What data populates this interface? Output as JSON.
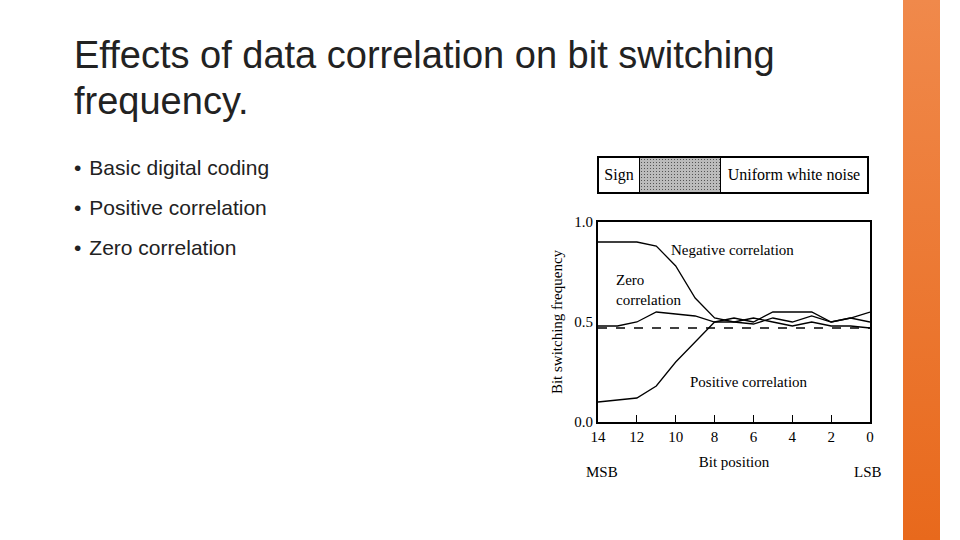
{
  "slide": {
    "title": "Effects of data correlation on bit switching frequency.",
    "bullets": [
      "Basic digital coding",
      "Positive correlation",
      "Zero correlation"
    ],
    "figure_header": {
      "sign": "Sign",
      "noise": "Uniform white noise"
    }
  },
  "chart_data": {
    "type": "line",
    "x_label": "Bit position",
    "y_label": "Bit switching frequency",
    "annotations": [
      "MSB",
      "LSB"
    ],
    "x": [
      14,
      13,
      12,
      11,
      10,
      9,
      8,
      7,
      6,
      5,
      4,
      3,
      2,
      1,
      0
    ],
    "series": [
      {
        "name": "Negative correlation",
        "color": "#000000",
        "line_style": "solid",
        "values": [
          0.9,
          0.9,
          0.9,
          0.88,
          0.78,
          0.62,
          0.52,
          0.5,
          0.52,
          0.5,
          0.48,
          0.5,
          0.48,
          0.48,
          0.47
        ]
      },
      {
        "name": "Zero correlation",
        "color": "#000000",
        "line_style": "solid",
        "values": [
          0.48,
          0.48,
          0.5,
          0.55,
          0.54,
          0.53,
          0.5,
          0.52,
          0.5,
          0.55,
          0.55,
          0.55,
          0.5,
          0.52,
          0.5
        ]
      },
      {
        "name": "Positive correlation",
        "color": "#000000",
        "line_style": "solid",
        "values": [
          0.1,
          0.11,
          0.12,
          0.18,
          0.3,
          0.4,
          0.5,
          0.5,
          0.49,
          0.52,
          0.5,
          0.53,
          0.5,
          0.52,
          0.55
        ]
      },
      {
        "color": "#000000",
        "line_style": "dashed",
        "values": [
          0.47,
          0.47,
          0.47,
          0.47,
          0.47,
          0.47,
          0.47,
          0.47,
          0.47,
          0.47,
          0.47,
          0.47,
          0.47,
          0.47,
          0.47
        ]
      }
    ],
    "xlim": [
      14,
      0
    ],
    "xticks": [
      14,
      12,
      10,
      8,
      6,
      4,
      2,
      0
    ],
    "ylim": [
      0,
      1
    ],
    "yticks": [
      {
        "value": 0,
        "label": "0.0"
      },
      {
        "value": 0.5,
        "label": "0.5"
      },
      {
        "value": 1,
        "label": "1.0"
      }
    ],
    "grid": false
  }
}
